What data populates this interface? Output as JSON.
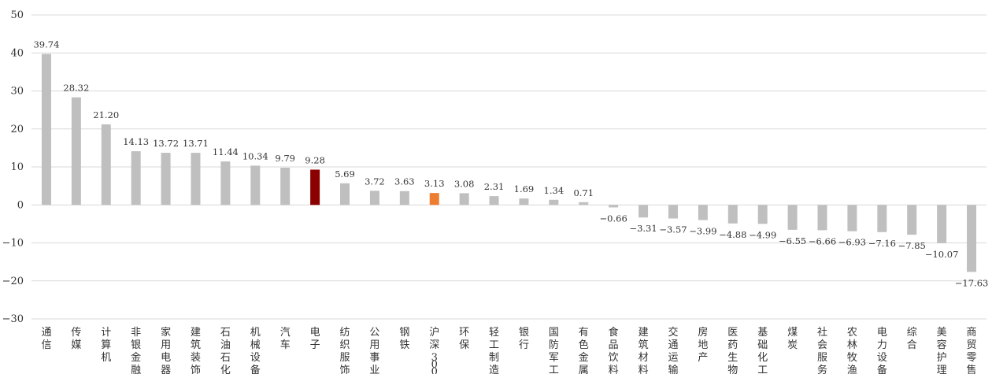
{
  "chart_data": {
    "type": "bar",
    "title": "",
    "xlabel": "",
    "ylabel": "",
    "ylim": [
      -30,
      50
    ],
    "yticks": [
      -30,
      -20,
      -10,
      0,
      10,
      20,
      30,
      40,
      50
    ],
    "ytick_labels": [
      "−30",
      "−20",
      "−10",
      "0",
      "10",
      "20",
      "30",
      "40",
      "50"
    ],
    "grid": true,
    "legend": "none",
    "categories": [
      "通信",
      "传媒",
      "计算机",
      "非银金融",
      "家用电器",
      "建筑装饰",
      "石油石化",
      "机械设备",
      "汽车",
      "电子",
      "纺织服饰",
      "公用事业",
      "钢铁",
      "沪深300",
      "环保",
      "轻工制造",
      "银行",
      "国防军工",
      "有色金属",
      "食品饮料",
      "建筑材料",
      "交通运输",
      "房地产",
      "医药生物",
      "基础化工",
      "煤炭",
      "社会服务",
      "农林牧渔",
      "电力设备",
      "综合",
      "美容护理",
      "商贸零售"
    ],
    "values": [
      39.74,
      28.32,
      21.2,
      14.13,
      13.72,
      13.71,
      11.44,
      10.34,
      9.79,
      9.28,
      5.69,
      3.72,
      3.63,
      3.13,
      3.08,
      2.31,
      1.69,
      1.34,
      0.71,
      -0.66,
      -3.31,
      -3.57,
      -3.99,
      -4.88,
      -4.99,
      -6.55,
      -6.66,
      -6.93,
      -7.16,
      -7.85,
      -10.07,
      -17.63
    ],
    "value_labels": [
      "39.74",
      "28.32",
      "21.20",
      "14.13",
      "13.72",
      "13.71",
      "11.44",
      "10.34",
      "9.79",
      "9.28",
      "5.69",
      "3.72",
      "3.63",
      "3.13",
      "3.08",
      "2.31",
      "1.69",
      "1.34",
      "0.71",
      "−0.66",
      "−3.31",
      "−3.57",
      "−3.99",
      "−4.88",
      "−4.99",
      "−6.55",
      "−6.66",
      "−6.93",
      "−7.16",
      "−7.85",
      "−10.07",
      "−17.63"
    ],
    "colors": {
      "default": "#bfbfbf",
      "电子": "#8b0000",
      "沪深300": "#ed7d31",
      "grid": "#d9d9d9",
      "axis": "#bfbfbf"
    }
  }
}
